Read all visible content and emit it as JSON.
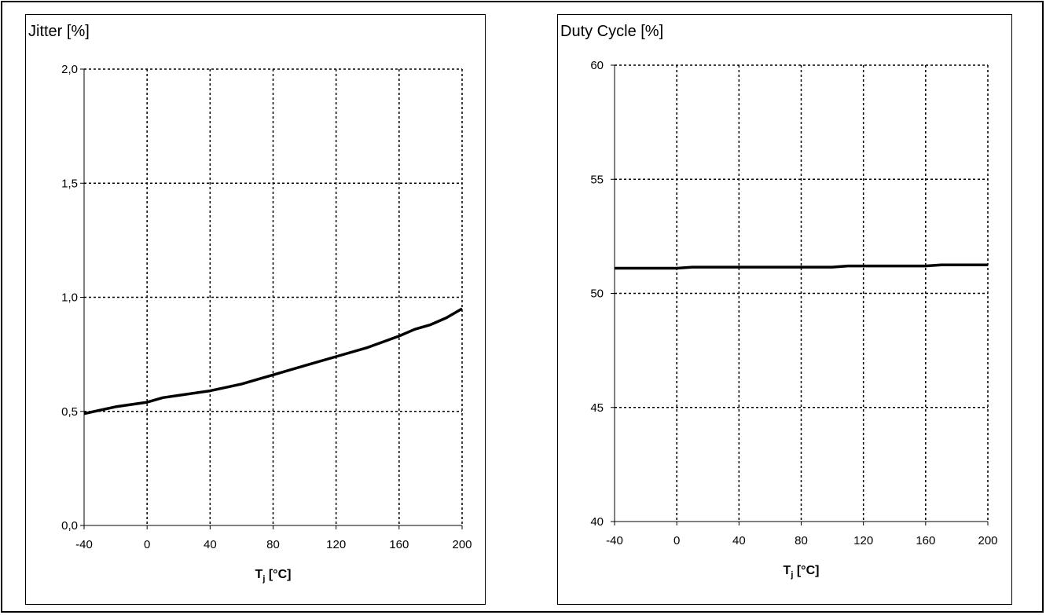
{
  "chart_data": [
    {
      "type": "line",
      "title": "",
      "ylabel": "Jitter [%]",
      "xlabel_main": "T",
      "xlabel_sub": "j",
      "xlabel_unit": " [°C]",
      "xlim": [
        -40,
        200
      ],
      "ylim": [
        0,
        2
      ],
      "x_ticks": [
        -40,
        0,
        40,
        80,
        120,
        160,
        200
      ],
      "x_tick_labels": [
        "-40",
        "0",
        "40",
        "80",
        "120",
        "160",
        "200"
      ],
      "y_ticks": [
        0,
        0.5,
        1,
        1.5,
        2
      ],
      "y_tick_labels": [
        "0,0",
        "0,5",
        "1,0",
        "1,5",
        "2,0"
      ],
      "grid": true,
      "series": [
        {
          "x": [
            -40,
            -20,
            0,
            10,
            20,
            40,
            60,
            70,
            80,
            100,
            120,
            140,
            160,
            170,
            180,
            190,
            200
          ],
          "y": [
            0.49,
            0.52,
            0.54,
            0.56,
            0.57,
            0.59,
            0.62,
            0.64,
            0.66,
            0.7,
            0.74,
            0.78,
            0.83,
            0.86,
            0.88,
            0.91,
            0.95
          ]
        }
      ],
      "line_color": "#000000"
    },
    {
      "type": "line",
      "title": "",
      "ylabel": "Duty Cycle [%]",
      "xlabel_main": "T",
      "xlabel_sub": "j",
      "xlabel_unit": " [°C]",
      "xlim": [
        -40,
        200
      ],
      "ylim": [
        40,
        60
      ],
      "x_ticks": [
        -40,
        0,
        40,
        80,
        120,
        160,
        200
      ],
      "x_tick_labels": [
        "-40",
        "0",
        "40",
        "80",
        "120",
        "160",
        "200"
      ],
      "y_ticks": [
        40,
        45,
        50,
        55,
        60
      ],
      "y_tick_labels": [
        "40",
        "45",
        "50",
        "55",
        "60"
      ],
      "grid": true,
      "series": [
        {
          "x": [
            -40,
            0,
            10,
            100,
            110,
            160,
            170,
            200
          ],
          "y": [
            51.1,
            51.1,
            51.15,
            51.15,
            51.2,
            51.2,
            51.25,
            51.25
          ]
        }
      ],
      "line_color": "#000000"
    }
  ]
}
